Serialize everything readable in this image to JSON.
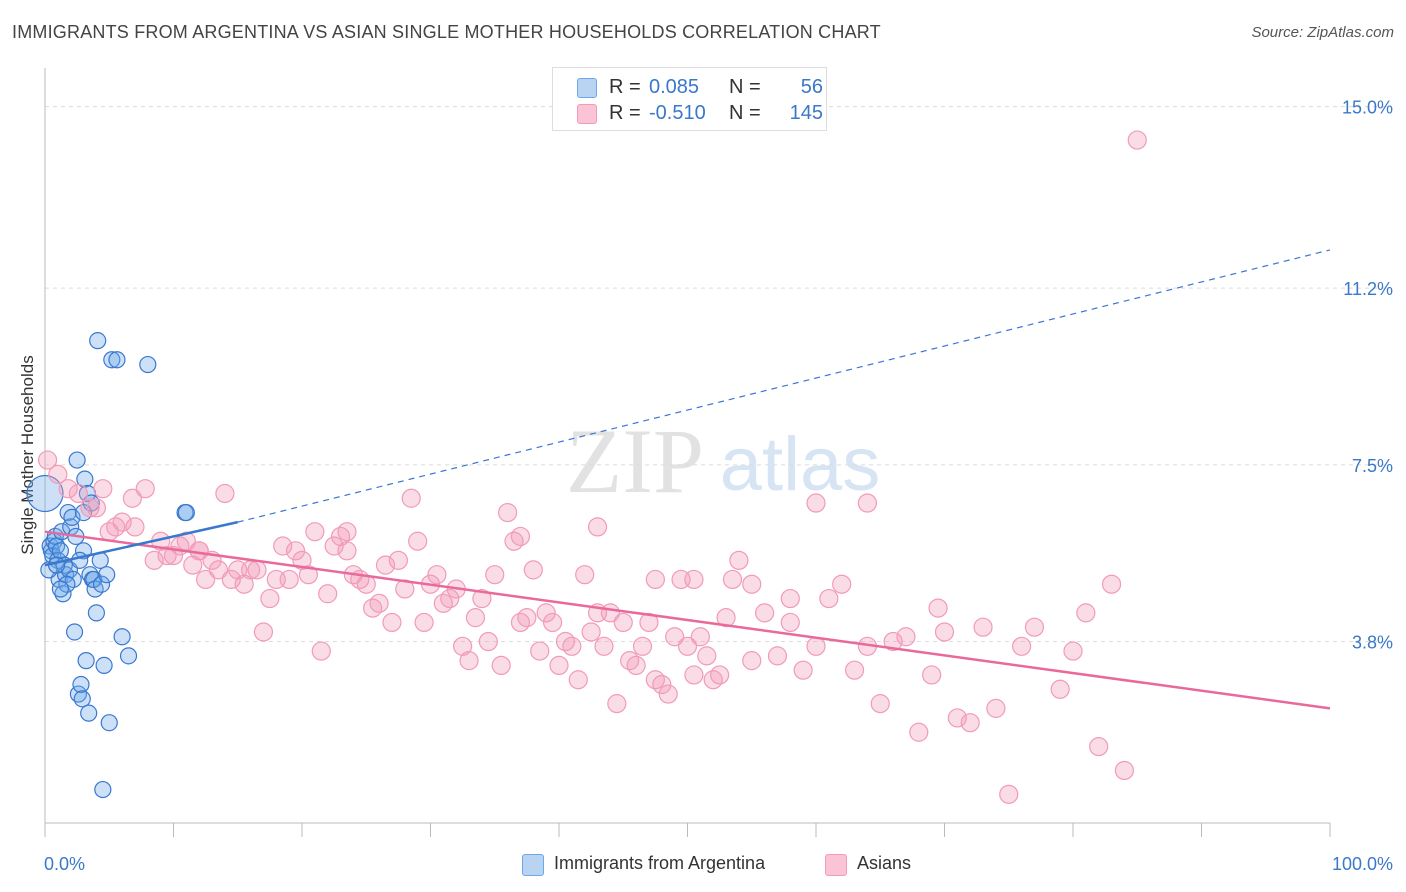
{
  "title": "IMMIGRANTS FROM ARGENTINA VS ASIAN SINGLE MOTHER HOUSEHOLDS CORRELATION CHART",
  "source": "Source: ZipAtlas.com",
  "watermark": {
    "zip": "ZIP",
    "atlas": "atlas"
  },
  "colors": {
    "blue": "#6ea8e8",
    "blue_line": "#3a78d0",
    "pink": "#f29ab8",
    "pink_line": "#e8699a",
    "accent_text": "#3a78c9"
  },
  "legend": {
    "rows": [
      {
        "r_label": "R =",
        "r_value": "0.085",
        "n_label": "N =",
        "n_value": "56"
      },
      {
        "r_label": "R =",
        "r_value": "-0.510",
        "n_label": "N =",
        "n_value": "145"
      }
    ]
  },
  "bottom_legend": [
    "Immigrants from Argentina",
    "Asians"
  ],
  "chart_data": {
    "type": "scatter",
    "xlabel": "",
    "ylabel": "Single Mother Households",
    "xlim": [
      0,
      100
    ],
    "ylim": [
      0,
      15.6
    ],
    "x_tick_labels": [
      "0.0%",
      "100.0%"
    ],
    "y_ticks": [
      3.8,
      7.5,
      11.2,
      15.0
    ],
    "y_tick_labels": [
      "3.8%",
      "7.5%",
      "11.2%",
      "15.0%"
    ],
    "grid": "horizontal dashed",
    "series": [
      {
        "name": "Immigrants from Argentina",
        "stats": {
          "R": 0.085,
          "N": 56
        },
        "trend": {
          "solid": [
            [
              0.0,
              5.4
            ],
            [
              15.0,
              6.3
            ]
          ],
          "dashed": [
            [
              15.0,
              6.3
            ],
            [
              100.0,
              12.0
            ]
          ]
        },
        "points": [
          [
            0.0,
            6.9
          ],
          [
            0.4,
            5.8
          ],
          [
            0.5,
            5.7
          ],
          [
            0.6,
            5.6
          ],
          [
            0.7,
            5.9
          ],
          [
            0.8,
            6.0
          ],
          [
            0.9,
            5.8
          ],
          [
            1.0,
            5.5
          ],
          [
            1.1,
            5.1
          ],
          [
            1.2,
            5.7
          ],
          [
            1.3,
            6.1
          ],
          [
            1.4,
            4.8
          ],
          [
            1.5,
            5.4
          ],
          [
            1.6,
            5.2
          ],
          [
            1.8,
            6.5
          ],
          [
            1.9,
            5.3
          ],
          [
            2.0,
            6.2
          ],
          [
            2.1,
            6.4
          ],
          [
            2.2,
            5.1
          ],
          [
            2.3,
            4.0
          ],
          [
            2.5,
            7.6
          ],
          [
            2.6,
            2.7
          ],
          [
            2.8,
            2.9
          ],
          [
            2.9,
            2.6
          ],
          [
            3.0,
            5.7
          ],
          [
            3.1,
            7.2
          ],
          [
            3.2,
            3.4
          ],
          [
            3.3,
            6.9
          ],
          [
            3.4,
            2.3
          ],
          [
            3.5,
            5.2
          ],
          [
            3.6,
            6.7
          ],
          [
            3.7,
            5.1
          ],
          [
            3.8,
            5.1
          ],
          [
            3.9,
            4.9
          ],
          [
            4.0,
            4.4
          ],
          [
            4.1,
            10.1
          ],
          [
            4.3,
            5.5
          ],
          [
            4.4,
            5.0
          ],
          [
            4.5,
            0.7
          ],
          [
            4.6,
            3.3
          ],
          [
            5.0,
            2.1
          ],
          [
            5.2,
            9.7
          ],
          [
            5.6,
            9.7
          ],
          [
            6.0,
            3.9
          ],
          [
            6.5,
            3.5
          ],
          [
            8.0,
            9.6
          ],
          [
            10.9,
            6.5
          ],
          [
            11.0,
            6.5
          ],
          [
            0.3,
            5.3
          ],
          [
            1.7,
            5.0
          ],
          [
            2.4,
            6.0
          ],
          [
            0.9,
            5.4
          ],
          [
            3.0,
            6.5
          ],
          [
            4.8,
            5.2
          ],
          [
            1.2,
            4.9
          ],
          [
            2.7,
            5.5
          ]
        ]
      },
      {
        "name": "Asians",
        "stats": {
          "R": -0.51,
          "N": 145
        },
        "trend": {
          "solid": [
            [
              0.0,
              6.1
            ],
            [
              100.0,
              2.4
            ]
          ]
        },
        "points": [
          [
            0.2,
            7.6
          ],
          [
            1.0,
            7.3
          ],
          [
            1.8,
            7.0
          ],
          [
            2.6,
            6.9
          ],
          [
            3.5,
            6.6
          ],
          [
            4.0,
            6.6
          ],
          [
            4.5,
            7.0
          ],
          [
            5.0,
            6.1
          ],
          [
            5.5,
            6.2
          ],
          [
            6.0,
            6.3
          ],
          [
            6.8,
            6.8
          ],
          [
            7.0,
            6.2
          ],
          [
            7.8,
            7.0
          ],
          [
            8.5,
            5.5
          ],
          [
            9.0,
            5.9
          ],
          [
            9.5,
            5.6
          ],
          [
            10.0,
            5.6
          ],
          [
            10.5,
            5.8
          ],
          [
            11.0,
            5.9
          ],
          [
            11.5,
            5.4
          ],
          [
            12.0,
            5.7
          ],
          [
            12.5,
            5.1
          ],
          [
            13.0,
            5.5
          ],
          [
            13.5,
            5.3
          ],
          [
            14.0,
            6.9
          ],
          [
            14.5,
            5.1
          ],
          [
            15.0,
            5.3
          ],
          [
            15.5,
            5.0
          ],
          [
            16.0,
            5.3
          ],
          [
            16.5,
            5.3
          ],
          [
            17.0,
            4.0
          ],
          [
            17.5,
            4.7
          ],
          [
            18.0,
            5.1
          ],
          [
            18.5,
            5.8
          ],
          [
            19.0,
            5.1
          ],
          [
            19.5,
            5.7
          ],
          [
            20.0,
            5.5
          ],
          [
            20.5,
            5.2
          ],
          [
            21.0,
            6.1
          ],
          [
            21.5,
            3.6
          ],
          [
            22.0,
            4.8
          ],
          [
            22.5,
            5.8
          ],
          [
            23.0,
            6.0
          ],
          [
            23.5,
            5.7
          ],
          [
            24.0,
            5.2
          ],
          [
            24.5,
            5.1
          ],
          [
            25.0,
            5.0
          ],
          [
            25.5,
            4.5
          ],
          [
            26.0,
            4.6
          ],
          [
            26.5,
            5.4
          ],
          [
            27.0,
            4.2
          ],
          [
            27.5,
            5.5
          ],
          [
            28.0,
            4.9
          ],
          [
            28.5,
            6.8
          ],
          [
            29.0,
            5.9
          ],
          [
            29.5,
            4.2
          ],
          [
            30.0,
            5.0
          ],
          [
            30.5,
            5.2
          ],
          [
            31.0,
            4.6
          ],
          [
            31.5,
            4.7
          ],
          [
            32.0,
            4.9
          ],
          [
            32.5,
            3.7
          ],
          [
            33.0,
            3.4
          ],
          [
            33.5,
            4.3
          ],
          [
            34.0,
            4.7
          ],
          [
            34.5,
            3.8
          ],
          [
            35.0,
            5.2
          ],
          [
            35.5,
            3.3
          ],
          [
            36.0,
            6.5
          ],
          [
            36.5,
            5.9
          ],
          [
            37.0,
            4.2
          ],
          [
            37.5,
            4.3
          ],
          [
            38.0,
            5.3
          ],
          [
            38.5,
            3.6
          ],
          [
            39.0,
            4.4
          ],
          [
            39.5,
            4.2
          ],
          [
            40.0,
            3.3
          ],
          [
            40.5,
            3.8
          ],
          [
            41.0,
            3.7
          ],
          [
            41.5,
            3.0
          ],
          [
            42.0,
            5.2
          ],
          [
            42.5,
            4.0
          ],
          [
            43.0,
            4.4
          ],
          [
            43.5,
            3.7
          ],
          [
            44.0,
            4.4
          ],
          [
            44.5,
            2.5
          ],
          [
            45.0,
            4.2
          ],
          [
            45.5,
            3.4
          ],
          [
            46.0,
            3.3
          ],
          [
            46.5,
            3.7
          ],
          [
            47.0,
            4.2
          ],
          [
            47.5,
            3.0
          ],
          [
            48.0,
            2.9
          ],
          [
            48.5,
            2.7
          ],
          [
            49.0,
            3.9
          ],
          [
            49.5,
            5.1
          ],
          [
            50.0,
            3.7
          ],
          [
            50.5,
            3.1
          ],
          [
            51.0,
            3.9
          ],
          [
            51.5,
            3.5
          ],
          [
            52.0,
            3.0
          ],
          [
            52.5,
            3.1
          ],
          [
            53.0,
            4.3
          ],
          [
            53.5,
            5.1
          ],
          [
            54.0,
            5.5
          ],
          [
            55.0,
            3.4
          ],
          [
            56.0,
            4.4
          ],
          [
            57.0,
            3.5
          ],
          [
            58.0,
            4.2
          ],
          [
            59.0,
            3.2
          ],
          [
            60.0,
            3.7
          ],
          [
            61.0,
            4.7
          ],
          [
            62.0,
            5.0
          ],
          [
            63.0,
            3.2
          ],
          [
            64.0,
            3.7
          ],
          [
            65.0,
            2.5
          ],
          [
            66.0,
            3.8
          ],
          [
            67.0,
            3.9
          ],
          [
            68.0,
            1.9
          ],
          [
            69.0,
            3.1
          ],
          [
            70.0,
            4.0
          ],
          [
            71.0,
            2.2
          ],
          [
            72.0,
            2.1
          ],
          [
            73.0,
            4.1
          ],
          [
            74.0,
            2.4
          ],
          [
            75.0,
            0.6
          ],
          [
            76.0,
            3.7
          ],
          [
            77.0,
            4.1
          ],
          [
            85.0,
            14.3
          ],
          [
            79.0,
            2.8
          ],
          [
            80.0,
            3.6
          ],
          [
            81.0,
            4.4
          ],
          [
            82.0,
            1.6
          ],
          [
            83.0,
            5.0
          ],
          [
            84.0,
            1.1
          ],
          [
            12.0,
            5.7
          ],
          [
            64.0,
            6.7
          ],
          [
            60.0,
            6.7
          ],
          [
            58.0,
            4.7
          ],
          [
            23.5,
            6.1
          ],
          [
            37.0,
            6.0
          ],
          [
            43.0,
            6.2
          ],
          [
            47.5,
            5.1
          ],
          [
            50.5,
            5.1
          ],
          [
            55.0,
            5.0
          ],
          [
            69.5,
            4.5
          ]
        ]
      }
    ]
  }
}
